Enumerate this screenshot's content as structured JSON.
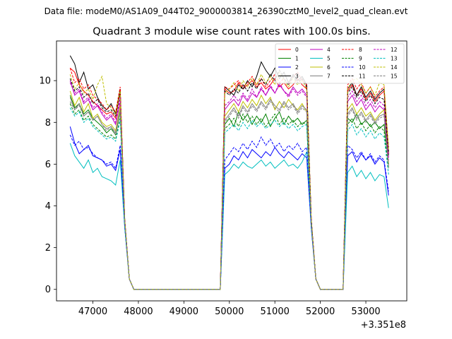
{
  "chart_data": {
    "type": "line",
    "suptitle": "Data file: modeM0/AS1A09_044T02_9000003814_26390cztM0_level2_quad_clean.evt",
    "title": "Quadrant 3 module wise count rates with 100.0s bins.",
    "xlabel": "",
    "ylabel": "",
    "x_offset_label": "+3.351e8",
    "xlim": [
      46200,
      53900
    ],
    "ylim": [
      -0.55,
      11.9
    ],
    "xticks": [
      47000,
      48000,
      49000,
      50000,
      51000,
      52000,
      53000
    ],
    "xtick_labels": [
      "47000",
      "48000",
      "49000",
      "50000",
      "51000",
      "52000",
      "53000"
    ],
    "yticks": [
      0,
      2,
      4,
      6,
      8,
      10
    ],
    "ytick_labels": [
      "0",
      "2",
      "4",
      "6",
      "8",
      "10"
    ],
    "legend_position": "upper right",
    "segments": [
      {
        "start": 46500,
        "n": 12,
        "step": 100
      },
      {
        "start": 49900,
        "n": 19,
        "step": 100
      },
      {
        "start": 52600,
        "n": 10,
        "step": 100
      }
    ],
    "tail_drop": [
      2.2,
      0.5
    ],
    "tail_rise": 3.0,
    "series": [
      {
        "name": "0",
        "color": "#ff0000",
        "dash": "solid",
        "seg1": [
          10.6,
          10.4,
          9.8,
          9.5,
          9.3,
          9.0,
          8.8,
          8.6,
          8.4,
          8.5,
          8.2,
          9.5
        ],
        "seg2": [
          9.6,
          9.4,
          9.5,
          9.9,
          9.6,
          9.8,
          10.0,
          9.7,
          9.9,
          9.6,
          9.8,
          10.1,
          9.7,
          9.9,
          9.6,
          9.8,
          10.1,
          9.8,
          9.6
        ],
        "seg3": [
          9.5,
          9.8,
          9.3,
          9.6,
          9.1,
          9.4,
          9.0,
          9.3,
          9.5,
          6.5
        ]
      },
      {
        "name": "1",
        "color": "#008000",
        "dash": "solid",
        "seg1": [
          9.3,
          8.7,
          8.9,
          8.4,
          8.6,
          8.2,
          8.0,
          7.8,
          7.5,
          7.7,
          7.4,
          8.5
        ],
        "seg2": [
          7.9,
          8.2,
          7.8,
          8.5,
          8.1,
          8.4,
          7.9,
          8.3,
          8.0,
          8.4,
          7.8,
          8.2,
          8.5,
          7.9,
          8.3,
          8.0,
          8.2,
          7.9,
          8.1
        ],
        "seg3": [
          8.2,
          8.0,
          8.4,
          7.9,
          8.1,
          7.8,
          8.0,
          7.7,
          7.9,
          6.0
        ]
      },
      {
        "name": "2",
        "color": "#0000ff",
        "dash": "solid",
        "seg1": [
          7.8,
          7.0,
          6.5,
          6.7,
          6.9,
          6.4,
          6.3,
          6.2,
          5.9,
          6.0,
          5.7,
          6.7
        ],
        "seg2": [
          5.8,
          6.0,
          6.4,
          6.2,
          6.6,
          6.3,
          6.7,
          6.5,
          6.3,
          6.6,
          6.4,
          6.8,
          6.5,
          6.3,
          6.6,
          6.4,
          6.2,
          6.5,
          6.3
        ],
        "seg3": [
          6.4,
          6.6,
          6.1,
          6.5,
          6.2,
          6.4,
          6.0,
          6.3,
          6.1,
          4.5
        ]
      },
      {
        "name": "3",
        "color": "#000000",
        "dash": "solid",
        "seg1": [
          11.2,
          10.8,
          9.9,
          10.4,
          9.6,
          9.8,
          9.2,
          8.8,
          8.6,
          8.9,
          8.4,
          9.6
        ],
        "seg2": [
          9.7,
          9.5,
          9.3,
          9.8,
          9.6,
          10.0,
          9.7,
          10.2,
          10.9,
          10.5,
          10.2,
          10.6,
          10.1,
          10.4,
          9.9,
          10.3,
          10.0,
          10.2,
          9.8
        ],
        "seg3": [
          9.6,
          9.9,
          9.3,
          9.7,
          9.2,
          9.5,
          9.1,
          9.4,
          9.6,
          6.6
        ]
      },
      {
        "name": "4",
        "color": "#bf00bf",
        "dash": "solid",
        "seg1": [
          10.0,
          9.3,
          9.5,
          8.9,
          9.1,
          8.6,
          8.8,
          8.4,
          8.1,
          8.3,
          7.9,
          9.0
        ],
        "seg2": [
          8.6,
          8.9,
          9.1,
          8.8,
          9.3,
          9.0,
          9.4,
          9.2,
          9.6,
          9.3,
          9.7,
          9.4,
          9.8,
          9.5,
          9.3,
          9.7,
          9.4,
          9.6,
          9.3
        ],
        "seg3": [
          9.0,
          9.3,
          8.8,
          9.1,
          8.6,
          8.9,
          8.5,
          8.8,
          8.6,
          6.3
        ]
      },
      {
        "name": "5",
        "color": "#00bfbf",
        "dash": "solid",
        "seg1": [
          7.0,
          6.4,
          6.1,
          5.8,
          6.2,
          5.6,
          5.8,
          5.4,
          5.3,
          5.2,
          5.0,
          6.2
        ],
        "seg2": [
          5.5,
          5.7,
          6.0,
          5.8,
          6.1,
          5.9,
          5.8,
          6.0,
          6.2,
          5.9,
          6.1,
          5.8,
          6.0,
          6.2,
          5.9,
          6.0,
          5.8,
          6.1,
          6.6
        ],
        "seg3": [
          5.6,
          5.9,
          5.4,
          5.7,
          5.3,
          5.6,
          5.2,
          5.5,
          5.4,
          3.9
        ]
      },
      {
        "name": "6",
        "color": "#bfbf00",
        "dash": "solid",
        "seg1": [
          9.5,
          8.8,
          9.2,
          8.5,
          8.9,
          8.2,
          8.4,
          8.0,
          7.8,
          7.9,
          7.6,
          8.8
        ],
        "seg2": [
          8.3,
          8.6,
          8.9,
          8.5,
          9.0,
          8.7,
          9.1,
          8.8,
          9.3,
          8.9,
          9.2,
          8.6,
          9.0,
          8.7,
          9.1,
          8.8,
          8.6,
          8.9,
          8.5
        ],
        "seg3": [
          8.6,
          8.9,
          8.4,
          8.7,
          8.3,
          8.5,
          8.1,
          8.4,
          8.6,
          6.0
        ]
      },
      {
        "name": "7",
        "color": "#808080",
        "dash": "solid",
        "seg1": [
          9.2,
          8.6,
          8.9,
          8.3,
          8.5,
          8.1,
          8.3,
          7.9,
          7.7,
          7.8,
          7.5,
          8.6
        ],
        "seg2": [
          8.1,
          8.4,
          8.7,
          8.3,
          8.8,
          8.5,
          8.9,
          8.6,
          9.0,
          8.7,
          9.1,
          8.8,
          8.6,
          9.0,
          8.7,
          8.9,
          8.5,
          8.8,
          8.6
        ],
        "seg3": [
          8.4,
          8.7,
          8.2,
          8.5,
          8.1,
          8.4,
          8.0,
          8.3,
          8.4,
          5.9
        ]
      },
      {
        "name": "8",
        "color": "#ff0000",
        "dash": "dashed",
        "seg1": [
          10.6,
          9.9,
          10.1,
          9.6,
          9.8,
          9.3,
          9.1,
          8.9,
          8.6,
          8.8,
          8.5,
          9.7
        ],
        "seg2": [
          9.7,
          9.6,
          9.8,
          10.0,
          9.7,
          9.9,
          10.2,
          9.8,
          10.1,
          9.7,
          10.0,
          10.3,
          9.9,
          10.1,
          9.8,
          10.2,
          10.4,
          10.0,
          9.8
        ],
        "seg3": [
          9.8,
          10.1,
          9.6,
          9.9,
          9.4,
          9.7,
          9.2,
          9.5,
          9.7,
          6.8
        ]
      },
      {
        "name": "9",
        "color": "#008000",
        "dash": "dashed",
        "seg1": [
          8.9,
          8.4,
          8.6,
          8.1,
          8.3,
          7.9,
          7.7,
          7.5,
          7.3,
          7.4,
          7.2,
          8.2
        ],
        "seg2": [
          7.7,
          7.9,
          8.2,
          7.8,
          8.4,
          8.0,
          8.3,
          7.9,
          8.2,
          7.8,
          8.1,
          8.4,
          7.9,
          8.2,
          7.9,
          8.1,
          7.8,
          8.0,
          7.9
        ],
        "seg3": [
          7.9,
          8.2,
          7.7,
          8.0,
          7.6,
          7.9,
          7.5,
          7.8,
          7.6,
          5.8
        ]
      },
      {
        "name": "10",
        "color": "#0000ff",
        "dash": "dashed",
        "seg1": [
          7.4,
          6.9,
          7.1,
          6.7,
          6.8,
          6.5,
          6.3,
          6.2,
          6.0,
          6.1,
          5.8,
          6.9
        ],
        "seg2": [
          6.2,
          6.5,
          6.8,
          6.6,
          7.0,
          6.7,
          7.1,
          6.8,
          7.3,
          6.9,
          7.2,
          6.8,
          7.0,
          6.6,
          6.9,
          6.7,
          7.0,
          6.6,
          6.8
        ],
        "seg3": [
          6.9,
          6.7,
          6.3,
          6.6,
          6.2,
          6.5,
          6.1,
          6.4,
          6.2,
          4.7
        ]
      },
      {
        "name": "11",
        "color": "#000000",
        "dash": "dashed",
        "seg1": [
          10.1,
          9.5,
          9.7,
          9.2,
          9.4,
          8.9,
          9.1,
          8.7,
          8.5,
          8.6,
          8.3,
          9.4
        ],
        "seg2": [
          9.5,
          9.3,
          9.6,
          9.4,
          9.8,
          9.5,
          9.9,
          9.6,
          10.1,
          9.8,
          10.3,
          10.0,
          10.5,
          10.1,
          9.8,
          10.2,
          9.9,
          10.1,
          9.7
        ],
        "seg3": [
          9.4,
          9.7,
          9.2,
          9.5,
          9.0,
          9.3,
          8.9,
          9.2,
          9.1,
          6.4
        ]
      },
      {
        "name": "12",
        "color": "#bf00bf",
        "dash": "dashed",
        "seg1": [
          9.9,
          9.4,
          9.6,
          9.0,
          9.2,
          8.7,
          8.9,
          8.5,
          8.2,
          8.4,
          8.0,
          9.2
        ],
        "seg2": [
          8.8,
          9.0,
          9.3,
          9.0,
          9.4,
          9.1,
          9.6,
          9.2,
          9.7,
          9.3,
          9.8,
          9.4,
          9.9,
          9.5,
          9.2,
          9.6,
          9.3,
          9.5,
          9.2
        ],
        "seg3": [
          9.2,
          9.5,
          9.0,
          9.3,
          8.8,
          9.1,
          8.7,
          9.0,
          8.8,
          6.2
        ]
      },
      {
        "name": "13",
        "color": "#00bfbf",
        "dash": "dashed",
        "seg1": [
          8.7,
          8.3,
          8.5,
          8.0,
          8.2,
          7.8,
          7.6,
          7.4,
          7.2,
          7.3,
          7.1,
          8.1
        ],
        "seg2": [
          7.5,
          7.7,
          7.9,
          7.6,
          8.0,
          7.7,
          8.1,
          7.8,
          8.0,
          7.7,
          7.9,
          8.1,
          7.8,
          8.0,
          7.7,
          7.9,
          7.6,
          7.8,
          7.9
        ],
        "seg3": [
          7.6,
          7.9,
          7.4,
          7.7,
          7.3,
          7.6,
          7.2,
          7.5,
          7.3,
          5.5
        ]
      },
      {
        "name": "14",
        "color": "#bfbf00",
        "dash": "dashed",
        "seg1": [
          10.3,
          9.6,
          9.9,
          9.4,
          9.6,
          9.1,
          9.8,
          10.2,
          8.9,
          8.7,
          8.4,
          9.5
        ],
        "seg2": [
          9.4,
          9.6,
          9.9,
          9.5,
          10.0,
          9.7,
          10.1,
          9.8,
          10.3,
          9.9,
          10.2,
          9.8,
          10.4,
          10.0,
          9.7,
          10.1,
          9.8,
          10.0,
          9.6
        ],
        "seg3": [
          9.6,
          10.0,
          10.1,
          9.8,
          9.4,
          9.7,
          9.3,
          9.9,
          9.8,
          6.7
        ]
      },
      {
        "name": "15",
        "color": "#808080",
        "dash": "dashed",
        "seg1": [
          9.0,
          8.6,
          8.8,
          8.3,
          8.5,
          8.1,
          8.3,
          7.9,
          7.6,
          7.8,
          7.4,
          8.5
        ],
        "seg2": [
          8.0,
          8.3,
          8.6,
          8.2,
          8.7,
          8.4,
          8.8,
          8.5,
          8.9,
          8.6,
          9.0,
          8.7,
          8.5,
          8.9,
          8.6,
          8.8,
          8.4,
          8.7,
          8.5
        ],
        "seg3": [
          8.3,
          8.6,
          8.1,
          8.4,
          8.0,
          8.3,
          7.9,
          8.2,
          8.3,
          5.8
        ]
      }
    ]
  }
}
